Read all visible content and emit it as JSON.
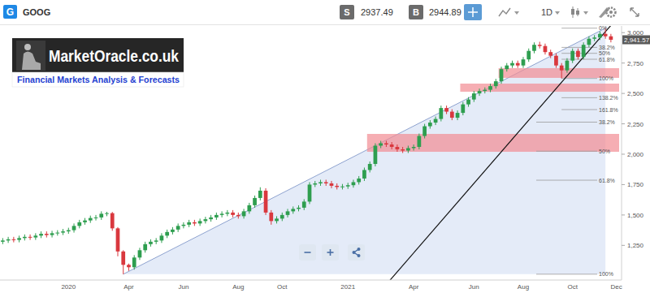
{
  "header": {
    "icon": "G",
    "symbol": "GOOG",
    "sell_label": "S",
    "sell": 2937.49,
    "buy_label": "B",
    "buy": 2944.89,
    "interval": "1D"
  },
  "logo": {
    "title": "MarketOracle.co.uk",
    "tagline": "Financial Markets Analysis & Forecasts"
  },
  "chart_data": {
    "type": "candlestick",
    "grid": false,
    "categories": [
      null,
      null,
      null,
      null,
      null,
      null,
      null,
      null,
      null,
      null,
      null,
      null,
      "2020",
      null,
      null,
      null,
      null,
      null,
      null,
      null,
      null,
      null,
      null,
      "Apr",
      null,
      null,
      null,
      null,
      null,
      null,
      null,
      null,
      null,
      "Jun",
      null,
      null,
      null,
      null,
      null,
      null,
      null,
      null,
      null,
      "Aug",
      null,
      null,
      null,
      null,
      null,
      null,
      null,
      "Oct",
      null,
      null,
      null,
      null,
      null,
      null,
      null,
      null,
      null,
      null,
      null,
      "2021",
      null,
      null,
      null,
      null,
      null,
      null,
      null,
      null,
      null,
      null,
      null,
      "Apr",
      null,
      null,
      null,
      null,
      null,
      null,
      null,
      null,
      null,
      null,
      "Jun",
      null,
      null,
      null,
      null,
      null,
      null,
      null,
      null,
      "Aug",
      null,
      null,
      null,
      null,
      null,
      null,
      null,
      null,
      "Oct",
      null,
      null,
      null,
      null,
      null,
      null,
      null,
      "Dec"
    ],
    "open": [
      1280,
      1290,
      1300,
      1295,
      1310,
      1320,
      1315,
      1330,
      1345,
      1335,
      1350,
      1355,
      1365,
      1375,
      1410,
      1440,
      1455,
      1475,
      1480,
      1510,
      1515,
      1390,
      1200,
      1090,
      1070,
      1150,
      1210,
      1260,
      1280,
      1290,
      1330,
      1360,
      1380,
      1410,
      1420,
      1440,
      1430,
      1450,
      1465,
      1480,
      1500,
      1510,
      1520,
      1500,
      1490,
      1530,
      1580,
      1640,
      1700,
      1520,
      1450,
      1470,
      1500,
      1530,
      1550,
      1560,
      1610,
      1750,
      1760,
      1770,
      1760,
      1740,
      1730,
      1735,
      1745,
      1770,
      1800,
      1870,
      1920,
      2070,
      2090,
      2080,
      2060,
      2040,
      2030,
      2050,
      2060,
      2150,
      2230,
      2260,
      2290,
      2380,
      2350,
      2300,
      2340,
      2410,
      2450,
      2500,
      2520,
      2530,
      2560,
      2600,
      2700,
      2730,
      2750,
      2730,
      2780,
      2850,
      2900,
      2890,
      2840,
      2810,
      2730,
      2690,
      2770,
      2850,
      2800,
      2900,
      2950,
      2960,
      2990,
      2970,
      null
    ],
    "high": [
      1310,
      1320,
      1320,
      1330,
      1340,
      1340,
      1350,
      1365,
      1365,
      1370,
      1375,
      1385,
      1395,
      1430,
      1460,
      1475,
      1495,
      1500,
      1530,
      1526,
      1525,
      1400,
      1210,
      1100,
      1170,
      1230,
      1280,
      1300,
      1310,
      1350,
      1380,
      1400,
      1430,
      1440,
      1460,
      1460,
      1470,
      1485,
      1500,
      1520,
      1530,
      1540,
      1540,
      1520,
      1550,
      1600,
      1660,
      1728,
      1720,
      1540,
      1490,
      1520,
      1550,
      1570,
      1580,
      1630,
      1770,
      1780,
      1790,
      1790,
      1780,
      1760,
      1755,
      1765,
      1790,
      1820,
      1890,
      1940,
      2090,
      2110,
      2110,
      2100,
      2080,
      2060,
      2070,
      2080,
      2170,
      2250,
      2280,
      2310,
      2400,
      2400,
      2370,
      2360,
      2430,
      2470,
      2520,
      2540,
      2550,
      2580,
      2620,
      2720,
      2750,
      2770,
      2770,
      2800,
      2870,
      2920,
      2925,
      2910,
      2860,
      2830,
      2750,
      2790,
      2870,
      2870,
      2920,
      2970,
      2980,
      3010,
      3037,
      2990,
      null
    ],
    "low": [
      1260,
      1270,
      1275,
      1275,
      1290,
      1295,
      1295,
      1310,
      1315,
      1315,
      1330,
      1335,
      1345,
      1355,
      1390,
      1420,
      1435,
      1455,
      1460,
      1490,
      1370,
      1160,
      1013,
      1040,
      1050,
      1130,
      1190,
      1240,
      1260,
      1270,
      1310,
      1340,
      1360,
      1390,
      1400,
      1410,
      1410,
      1430,
      1445,
      1460,
      1480,
      1490,
      1480,
      1470,
      1470,
      1510,
      1560,
      1620,
      1500,
      1420,
      1430,
      1450,
      1480,
      1510,
      1530,
      1540,
      1590,
      1730,
      1740,
      1740,
      1720,
      1710,
      1710,
      1715,
      1725,
      1750,
      1780,
      1850,
      1900,
      2050,
      2060,
      2040,
      2020,
      2010,
      2010,
      2030,
      2040,
      2130,
      2210,
      2240,
      2270,
      2330,
      2280,
      2280,
      2320,
      2390,
      2430,
      2480,
      2500,
      2510,
      2540,
      2580,
      2680,
      2710,
      2710,
      2710,
      2760,
      2830,
      2870,
      2820,
      2790,
      2710,
      2623,
      2670,
      2750,
      2780,
      2780,
      2880,
      2930,
      2940,
      2950,
      2920,
      null
    ],
    "close": [
      1290,
      1300,
      1295,
      1310,
      1320,
      1315,
      1330,
      1345,
      1335,
      1350,
      1355,
      1365,
      1375,
      1410,
      1440,
      1455,
      1475,
      1480,
      1510,
      1515,
      1390,
      1200,
      1090,
      1070,
      1150,
      1210,
      1260,
      1280,
      1290,
      1330,
      1360,
      1380,
      1410,
      1420,
      1440,
      1430,
      1450,
      1465,
      1480,
      1500,
      1510,
      1520,
      1500,
      1490,
      1530,
      1580,
      1640,
      1700,
      1520,
      1450,
      1470,
      1500,
      1530,
      1550,
      1560,
      1610,
      1750,
      1760,
      1770,
      1760,
      1740,
      1730,
      1735,
      1745,
      1770,
      1800,
      1870,
      1920,
      2070,
      2090,
      2080,
      2060,
      2040,
      2030,
      2050,
      2060,
      2150,
      2230,
      2260,
      2290,
      2380,
      2350,
      2300,
      2340,
      2410,
      2450,
      2500,
      2520,
      2530,
      2560,
      2600,
      2700,
      2730,
      2750,
      2730,
      2780,
      2850,
      2900,
      2890,
      2840,
      2810,
      2730,
      2690,
      2770,
      2850,
      2800,
      2900,
      2950,
      2960,
      2990,
      2970,
      2941.57,
      null
    ],
    "ylim": [
      965,
      3055
    ],
    "yticks": [
      {
        "value": 1250,
        "label": "1,250"
      },
      {
        "value": 1500,
        "label": "1,500"
      },
      {
        "value": 1750,
        "label": "1,750"
      },
      {
        "value": 2000,
        "label": "2,000"
      },
      {
        "value": 2250,
        "label": "2,250"
      },
      {
        "value": 2500,
        "label": "2,500"
      },
      {
        "value": 2750,
        "label": "2,750"
      },
      {
        "value": 3000,
        "label": "3,000"
      }
    ],
    "last_price": {
      "value": 2941.57,
      "label": "2,941.57"
    },
    "zones": [
      {
        "x": [
          91,
          112
        ],
        "y": [
          2628,
          2708
        ]
      },
      {
        "x": [
          84,
          112
        ],
        "y": [
          2514,
          2581
        ]
      },
      {
        "x": [
          67,
          112
        ],
        "y": [
          2020,
          2167
        ]
      }
    ],
    "trendline": {
      "x": [
        70,
        111
      ],
      "y": [
        928,
        3060
      ]
    },
    "fibonacci": [
      {
        "x": [
          22,
          110
        ],
        "y": [
          3037,
          1013
        ],
        "levels": [
          {
            "value": 38.2,
            "label": "38.2%"
          },
          {
            "value": 50,
            "label": "50%"
          },
          {
            "value": 61.8,
            "label": "61.8%"
          },
          {
            "value": 100,
            "label": "100%"
          }
        ]
      },
      {
        "x": [
          102,
          110
        ],
        "y": [
          3037,
          2623
        ],
        "levels": [
          {
            "value": 0,
            "label": "0%"
          },
          {
            "value": 38.2,
            "label": "38.2%"
          },
          {
            "value": 50,
            "label": "50%"
          },
          {
            "value": 61.8,
            "label": "61.8%"
          },
          {
            "value": 100,
            "label": "100%"
          },
          {
            "value": 138.2,
            "label": "138.2%"
          },
          {
            "value": 161.8,
            "label": "161.8%"
          }
        ]
      }
    ]
  }
}
